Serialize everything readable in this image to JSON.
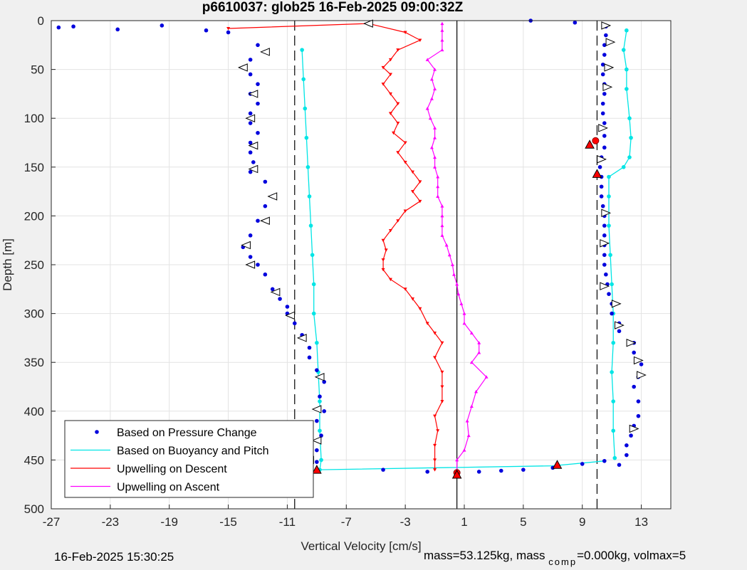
{
  "chart_data": {
    "type": "scatter",
    "title": "p6610037: glob25 16-Feb-2025 09:00:32Z",
    "xlabel": "Vertical Velocity [cm/s]",
    "ylabel": "Depth [m]",
    "xlim": [
      -27,
      15
    ],
    "ylim": [
      0,
      500
    ],
    "y_reversed": true,
    "grid": true,
    "legend_position": "bottom-left",
    "x_ticks": [
      -27,
      -23,
      -19,
      -15,
      -11,
      -7,
      -3,
      1,
      5,
      9,
      13
    ],
    "y_ticks": [
      0,
      50,
      100,
      150,
      200,
      250,
      300,
      350,
      400,
      450,
      500
    ],
    "reference_lines": [
      {
        "x": 0.5,
        "style": "solid"
      },
      {
        "x": -10.5,
        "style": "dashed"
      },
      {
        "x": 10.0,
        "style": "dashed"
      }
    ],
    "series": [
      {
        "name": "Based on Pressure Change",
        "color": "#0000dd",
        "marker": "dot",
        "descent": [
          [
            -13,
            25
          ],
          [
            -12.5,
            32
          ],
          [
            -13.5,
            40
          ],
          [
            -14,
            48
          ],
          [
            -13.5,
            55
          ],
          [
            -13,
            65
          ],
          [
            -13.5,
            75
          ],
          [
            -13,
            85
          ],
          [
            -13.5,
            95
          ],
          [
            -13.5,
            105
          ],
          [
            -13,
            115
          ],
          [
            -13.5,
            125
          ],
          [
            -13.5,
            135
          ],
          [
            -13.3,
            145
          ],
          [
            -13.5,
            155
          ],
          [
            -12.5,
            165
          ],
          [
            -12,
            180
          ],
          [
            -12.5,
            190
          ],
          [
            -13,
            205
          ],
          [
            -13.5,
            220
          ],
          [
            -14,
            232
          ],
          [
            -13.5,
            242
          ],
          [
            -13,
            250
          ],
          [
            -12.5,
            260
          ],
          [
            -12,
            275
          ],
          [
            -11.5,
            285
          ],
          [
            -11,
            293
          ],
          [
            -11,
            300
          ],
          [
            -10.5,
            310
          ],
          [
            -10,
            322
          ],
          [
            -9.5,
            335
          ],
          [
            -9.5,
            345
          ],
          [
            -9,
            358
          ],
          [
            -8.5,
            370
          ],
          [
            -8.8,
            385
          ],
          [
            -8.5,
            400
          ],
          [
            -9,
            410
          ],
          [
            -8.7,
            425
          ],
          [
            -9,
            440
          ],
          [
            -9,
            452
          ],
          [
            -9,
            460
          ]
        ],
        "ascent": [
          [
            11.5,
            455
          ],
          [
            12,
            445
          ],
          [
            12,
            435
          ],
          [
            12.3,
            425
          ],
          [
            12.5,
            415
          ],
          [
            12.8,
            405
          ],
          [
            12.8,
            390
          ],
          [
            12.5,
            375
          ],
          [
            12.8,
            365
          ],
          [
            13,
            352
          ],
          [
            12.5,
            340
          ],
          [
            12.5,
            330
          ],
          [
            11.5,
            318
          ],
          [
            11.5,
            310
          ],
          [
            11,
            300
          ],
          [
            11,
            290
          ],
          [
            10.8,
            280
          ],
          [
            10.7,
            270
          ],
          [
            10.6,
            260
          ],
          [
            10.5,
            250
          ],
          [
            10.5,
            240
          ],
          [
            10.5,
            230
          ],
          [
            10.5,
            220
          ],
          [
            10.5,
            210
          ],
          [
            10.5,
            200
          ],
          [
            10.4,
            190
          ],
          [
            10.3,
            180
          ],
          [
            10.3,
            170
          ],
          [
            10.3,
            160
          ],
          [
            10.2,
            150
          ],
          [
            10.3,
            140
          ],
          [
            10.5,
            130
          ],
          [
            10.5,
            118
          ],
          [
            10.5,
            105
          ],
          [
            10.4,
            95
          ],
          [
            10.4,
            85
          ],
          [
            10.5,
            75
          ],
          [
            10.5,
            65
          ],
          [
            10.4,
            55
          ],
          [
            10.4,
            45
          ],
          [
            10.5,
            35
          ],
          [
            10.5,
            25
          ],
          [
            10.6,
            15
          ],
          [
            10.6,
            6
          ]
        ],
        "surface_outliers": [
          [
            -26.5,
            7
          ],
          [
            -25.5,
            6
          ],
          [
            -22.5,
            9
          ],
          [
            -19.5,
            5
          ],
          [
            -16.5,
            10
          ],
          [
            -15,
            12
          ],
          [
            5.5,
            0
          ],
          [
            8.5,
            2
          ]
        ],
        "bottom_outliers": [
          [
            -4.5,
            460
          ],
          [
            -1.5,
            462
          ],
          [
            2,
            462
          ],
          [
            3.5,
            461
          ],
          [
            5,
            460
          ],
          [
            7,
            458
          ],
          [
            9,
            454
          ],
          [
            10.5,
            451
          ]
        ]
      },
      {
        "name": "Based on Buoyancy and Pitch",
        "color": "#00e5e5",
        "descent": [
          [
            -10,
            30
          ],
          [
            -9.9,
            60
          ],
          [
            -9.8,
            90
          ],
          [
            -9.7,
            120
          ],
          [
            -9.6,
            150
          ],
          [
            -9.5,
            180
          ],
          [
            -9.4,
            210
          ],
          [
            -9.3,
            240
          ],
          [
            -9.2,
            270
          ],
          [
            -9.2,
            300
          ],
          [
            -9,
            330
          ],
          [
            -8.9,
            360
          ],
          [
            -8.8,
            390
          ],
          [
            -8.8,
            420
          ],
          [
            -8.7,
            450
          ],
          [
            -8.8,
            460
          ]
        ],
        "ascent": [
          [
            11.2,
            448
          ],
          [
            11.1,
            420
          ],
          [
            11.1,
            390
          ],
          [
            11.0,
            360
          ],
          [
            11.1,
            330
          ],
          [
            11.1,
            300
          ],
          [
            11.0,
            270
          ],
          [
            10.9,
            240
          ],
          [
            10.8,
            210
          ],
          [
            10.8,
            180
          ],
          [
            10.8,
            160
          ],
          [
            11.8,
            150
          ],
          [
            12.2,
            140
          ],
          [
            12.3,
            120
          ],
          [
            12.2,
            100
          ],
          [
            12.0,
            70
          ],
          [
            12.0,
            50
          ],
          [
            11.8,
            30
          ],
          [
            12.0,
            10
          ]
        ],
        "bridge": [
          [
            -8.8,
            460
          ],
          [
            7,
            456
          ],
          [
            10.5,
            451
          ]
        ]
      },
      {
        "name": "Upwelling on Descent",
        "color": "#ff0000",
        "values": [
          [
            -15,
            8
          ],
          [
            -5.5,
            3
          ],
          [
            -3,
            12
          ],
          [
            -2,
            20
          ],
          [
            -3.5,
            30
          ],
          [
            -4,
            40
          ],
          [
            -4.5,
            48
          ],
          [
            -4,
            55
          ],
          [
            -4.5,
            65
          ],
          [
            -4,
            75
          ],
          [
            -3.5,
            85
          ],
          [
            -4,
            95
          ],
          [
            -3.5,
            105
          ],
          [
            -3.8,
            115
          ],
          [
            -3,
            125
          ],
          [
            -3.5,
            135
          ],
          [
            -3,
            145
          ],
          [
            -2.5,
            155
          ],
          [
            -2,
            165
          ],
          [
            -2.5,
            175
          ],
          [
            -2,
            185
          ],
          [
            -3,
            195
          ],
          [
            -3.5,
            205
          ],
          [
            -4,
            215
          ],
          [
            -4.5,
            225
          ],
          [
            -4.3,
            235
          ],
          [
            -4.5,
            245
          ],
          [
            -4.5,
            255
          ],
          [
            -4,
            265
          ],
          [
            -3,
            275
          ],
          [
            -2.5,
            285
          ],
          [
            -2,
            295
          ],
          [
            -1.5,
            310
          ],
          [
            -1,
            320
          ],
          [
            -0.5,
            330
          ],
          [
            -1,
            345
          ],
          [
            -0.5,
            360
          ],
          [
            -0.5,
            375
          ],
          [
            -0.5,
            390
          ],
          [
            -1,
            405
          ],
          [
            -0.8,
            420
          ],
          [
            -1,
            435
          ],
          [
            -1,
            450
          ],
          [
            -1,
            460
          ]
        ]
      },
      {
        "name": "Upwelling on Ascent",
        "color": "#ff00ff",
        "values": [
          [
            0.5,
            462
          ],
          [
            0.5,
            450
          ],
          [
            1,
            440
          ],
          [
            1.3,
            425
          ],
          [
            1.2,
            410
          ],
          [
            1.5,
            395
          ],
          [
            1.8,
            380
          ],
          [
            2.5,
            365
          ],
          [
            1.5,
            350
          ],
          [
            2,
            340
          ],
          [
            2,
            330
          ],
          [
            1.5,
            320
          ],
          [
            1,
            310
          ],
          [
            1,
            300
          ],
          [
            0.8,
            290
          ],
          [
            0.6,
            280
          ],
          [
            0.5,
            270
          ],
          [
            0.3,
            260
          ],
          [
            0.2,
            250
          ],
          [
            0,
            240
          ],
          [
            -0.2,
            230
          ],
          [
            -0.5,
            220
          ],
          [
            -0.5,
            210
          ],
          [
            -0.5,
            200
          ],
          [
            -0.5,
            190
          ],
          [
            -0.8,
            180
          ],
          [
            -0.8,
            170
          ],
          [
            -0.8,
            160
          ],
          [
            -1,
            150
          ],
          [
            -1,
            140
          ],
          [
            -1.2,
            130
          ],
          [
            -1,
            120
          ],
          [
            -1,
            110
          ],
          [
            -1.3,
            100
          ],
          [
            -1.5,
            90
          ],
          [
            -1.2,
            80
          ],
          [
            -1,
            70
          ],
          [
            -1.2,
            60
          ],
          [
            -1,
            50
          ],
          [
            -1.5,
            40
          ],
          [
            -0.5,
            30
          ],
          [
            -0.5,
            20
          ],
          [
            -0.5,
            10
          ],
          [
            -0.5,
            3
          ]
        ]
      }
    ],
    "markers": {
      "descent_triangles": [
        [
          -5.5,
          3
        ],
        [
          -12.5,
          32
        ],
        [
          -14,
          48
        ],
        [
          -13.3,
          75
        ],
        [
          -13.5,
          100
        ],
        [
          -13.3,
          128
        ],
        [
          -13.3,
          152
        ],
        [
          -12,
          180
        ],
        [
          -12.5,
          205
        ],
        [
          -13.8,
          230
        ],
        [
          -13.5,
          250
        ],
        [
          -11.8,
          278
        ],
        [
          -10.8,
          302
        ],
        [
          -10,
          325
        ],
        [
          -8.8,
          365
        ],
        [
          -9,
          398
        ],
        [
          -9,
          430
        ],
        [
          -9.5,
          450
        ]
      ],
      "ascent_triangles": [
        [
          12.5,
          418
        ],
        [
          13,
          363
        ],
        [
          12.8,
          348
        ],
        [
          12.3,
          330
        ],
        [
          11.5,
          312
        ],
        [
          11.3,
          290
        ],
        [
          10.5,
          272
        ],
        [
          10.5,
          228
        ],
        [
          10.6,
          197
        ],
        [
          10.3,
          142
        ],
        [
          10.4,
          110
        ],
        [
          10.7,
          68
        ],
        [
          10.8,
          48
        ],
        [
          10.9,
          22
        ],
        [
          10.6,
          5
        ]
      ],
      "red_triangles": [
        [
          -9.0,
          460
        ],
        [
          0.5,
          465
        ],
        [
          7.3,
          455
        ],
        [
          10.0,
          157
        ],
        [
          9.5,
          127
        ]
      ],
      "red_dots": [
        [
          9.9,
          123
        ],
        [
          0.5,
          463
        ]
      ]
    }
  },
  "footer": {
    "timestamp": "16-Feb-2025 15:30:25",
    "mass_text": "mass=53.125kg, mass",
    "comp_sub": "comp",
    "comp_text": "=0.000kg, volmax=5"
  }
}
